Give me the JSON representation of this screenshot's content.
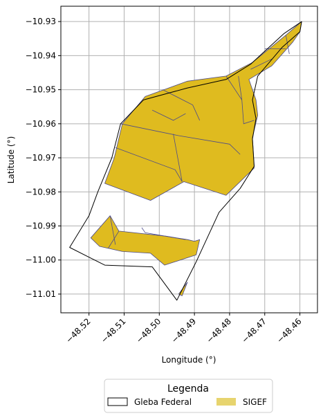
{
  "map": {
    "xlabel": "Longitude (°)",
    "ylabel": "Latitude (°)",
    "xlim": [
      -48.528,
      -48.455
    ],
    "ylim": [
      -11.0155,
      -10.9255
    ],
    "x_ticks": [
      -48.52,
      -48.51,
      -48.5,
      -48.49,
      -48.48,
      -48.47,
      -48.46
    ],
    "x_tick_labels": [
      "−48.52",
      "−48.51",
      "−48.50",
      "−48.49",
      "−48.48",
      "−48.47",
      "−48.46"
    ],
    "y_ticks": [
      -10.93,
      -10.94,
      -10.95,
      -10.96,
      -10.97,
      -10.98,
      -10.99,
      -11.0,
      -11.01
    ],
    "y_tick_labels": [
      "−10.93",
      "−10.94",
      "−10.95",
      "−10.96",
      "−10.97",
      "−10.98",
      "−10.99",
      "−11.00",
      "−11.01"
    ],
    "grid": true,
    "colors": {
      "gleba_edge": "#000000",
      "sigef_fill": "#dfbb1f",
      "sigef_edge": "#4b4a8a",
      "grid": "#b0b0b0",
      "legend_sigef": "#e7d46e"
    }
  },
  "legend": {
    "title": "Legenda",
    "items": [
      {
        "label": "Gleba Federal",
        "type": "outline"
      },
      {
        "label": "SIGEF",
        "type": "fill"
      }
    ]
  },
  "layers": {
    "gleba_federal": [
      [
        [
          -48.4595,
          -10.93
        ],
        [
          -48.4645,
          -10.9335
        ],
        [
          -48.474,
          -10.9425
        ],
        [
          -48.481,
          -10.947
        ],
        [
          -48.492,
          -10.9495
        ],
        [
          -48.5045,
          -10.953
        ],
        [
          -48.511,
          -10.96
        ],
        [
          -48.5135,
          -10.97
        ],
        [
          -48.5175,
          -10.98
        ],
        [
          -48.52,
          -10.987
        ],
        [
          -48.5255,
          -10.9963
        ],
        [
          -48.5155,
          -11.0015
        ],
        [
          -48.502,
          -11.002
        ],
        [
          -48.495,
          -11.0118
        ],
        [
          -48.4895,
          -11.0005
        ],
        [
          -48.483,
          -10.986
        ],
        [
          -48.477,
          -10.979
        ],
        [
          -48.473,
          -10.9725
        ],
        [
          -48.4735,
          -10.9645
        ],
        [
          -48.4725,
          -10.9585
        ],
        [
          -48.4735,
          -10.953
        ],
        [
          -48.472,
          -10.946
        ],
        [
          -48.465,
          -10.9375
        ],
        [
          -48.46,
          -10.933
        ],
        [
          -48.4595,
          -10.93
        ]
      ]
    ],
    "sigef": [
      [
        [
          -48.4595,
          -10.93
        ],
        [
          -48.464,
          -10.934
        ],
        [
          -48.4735,
          -10.942
        ],
        [
          -48.481,
          -10.946
        ],
        [
          -48.492,
          -10.9475
        ],
        [
          -48.504,
          -10.952
        ],
        [
          -48.5105,
          -10.96
        ],
        [
          -48.5128,
          -10.97
        ],
        [
          -48.5155,
          -10.9775
        ],
        [
          -48.5025,
          -10.9825
        ],
        [
          -48.493,
          -10.977
        ],
        [
          -48.481,
          -10.981
        ],
        [
          -48.473,
          -10.973
        ],
        [
          -48.4735,
          -10.964
        ],
        [
          -48.472,
          -10.9575
        ],
        [
          -48.4725,
          -10.953
        ],
        [
          -48.4745,
          -10.947
        ],
        [
          -48.468,
          -10.943
        ],
        [
          -48.462,
          -10.936
        ],
        [
          -48.46,
          -10.933
        ],
        [
          -48.4595,
          -10.93
        ]
      ],
      [
        [
          -48.5195,
          -10.9935
        ],
        [
          -48.514,
          -10.987
        ],
        [
          -48.5115,
          -10.9915
        ],
        [
          -48.498,
          -10.993
        ],
        [
          -48.492,
          -10.994
        ],
        [
          -48.49,
          -10.9945
        ],
        [
          -48.4885,
          -10.994
        ],
        [
          -48.4895,
          -10.9985
        ],
        [
          -48.4985,
          -11.0015
        ],
        [
          -48.5025,
          -10.998
        ],
        [
          -48.5105,
          -10.9975
        ],
        [
          -48.517,
          -10.996
        ],
        [
          -48.5195,
          -10.9935
        ]
      ],
      [
        [
          -48.4945,
          -11.01
        ],
        [
          -48.492,
          -11.0065
        ],
        [
          -48.4935,
          -11.0105
        ],
        [
          -48.4945,
          -11.01
        ]
      ]
    ],
    "sigef_divisions": [
      [
        [
          -48.511,
          -10.96
        ],
        [
          -48.4945,
          -10.9635
        ],
        [
          -48.48,
          -10.966
        ],
        [
          -48.477,
          -10.969
        ]
      ],
      [
        [
          -48.5125,
          -10.967
        ],
        [
          -48.4955,
          -10.9735
        ],
        [
          -48.4935,
          -10.977
        ]
      ],
      [
        [
          -48.4935,
          -10.977
        ],
        [
          -48.496,
          -10.963
        ]
      ],
      [
        [
          -48.502,
          -10.956
        ],
        [
          -48.496,
          -10.959
        ],
        [
          -48.4925,
          -10.957
        ]
      ],
      [
        [
          -48.499,
          -10.95
        ],
        [
          -48.4905,
          -10.9545
        ],
        [
          -48.4885,
          -10.959
        ]
      ],
      [
        [
          -48.481,
          -10.946
        ],
        [
          -48.4765,
          -10.953
        ],
        [
          -48.476,
          -10.96
        ],
        [
          -48.473,
          -10.959
        ]
      ],
      [
        [
          -48.4765,
          -10.953
        ],
        [
          -48.4775,
          -10.946
        ]
      ],
      [
        [
          -48.474,
          -10.944
        ],
        [
          -48.468,
          -10.941
        ]
      ],
      [
        [
          -48.47,
          -10.938
        ],
        [
          -48.464,
          -10.938
        ]
      ],
      [
        [
          -48.464,
          -10.934
        ],
        [
          -48.463,
          -10.9395
        ]
      ],
      [
        [
          -48.4925,
          -10.994
        ],
        [
          -48.504,
          -10.992
        ],
        [
          -48.505,
          -10.9905
        ]
      ],
      [
        [
          -48.514,
          -10.987
        ],
        [
          -48.5125,
          -10.9955
        ]
      ],
      [
        [
          -48.5115,
          -10.9915
        ],
        [
          -48.5145,
          -10.9965
        ]
      ]
    ]
  }
}
